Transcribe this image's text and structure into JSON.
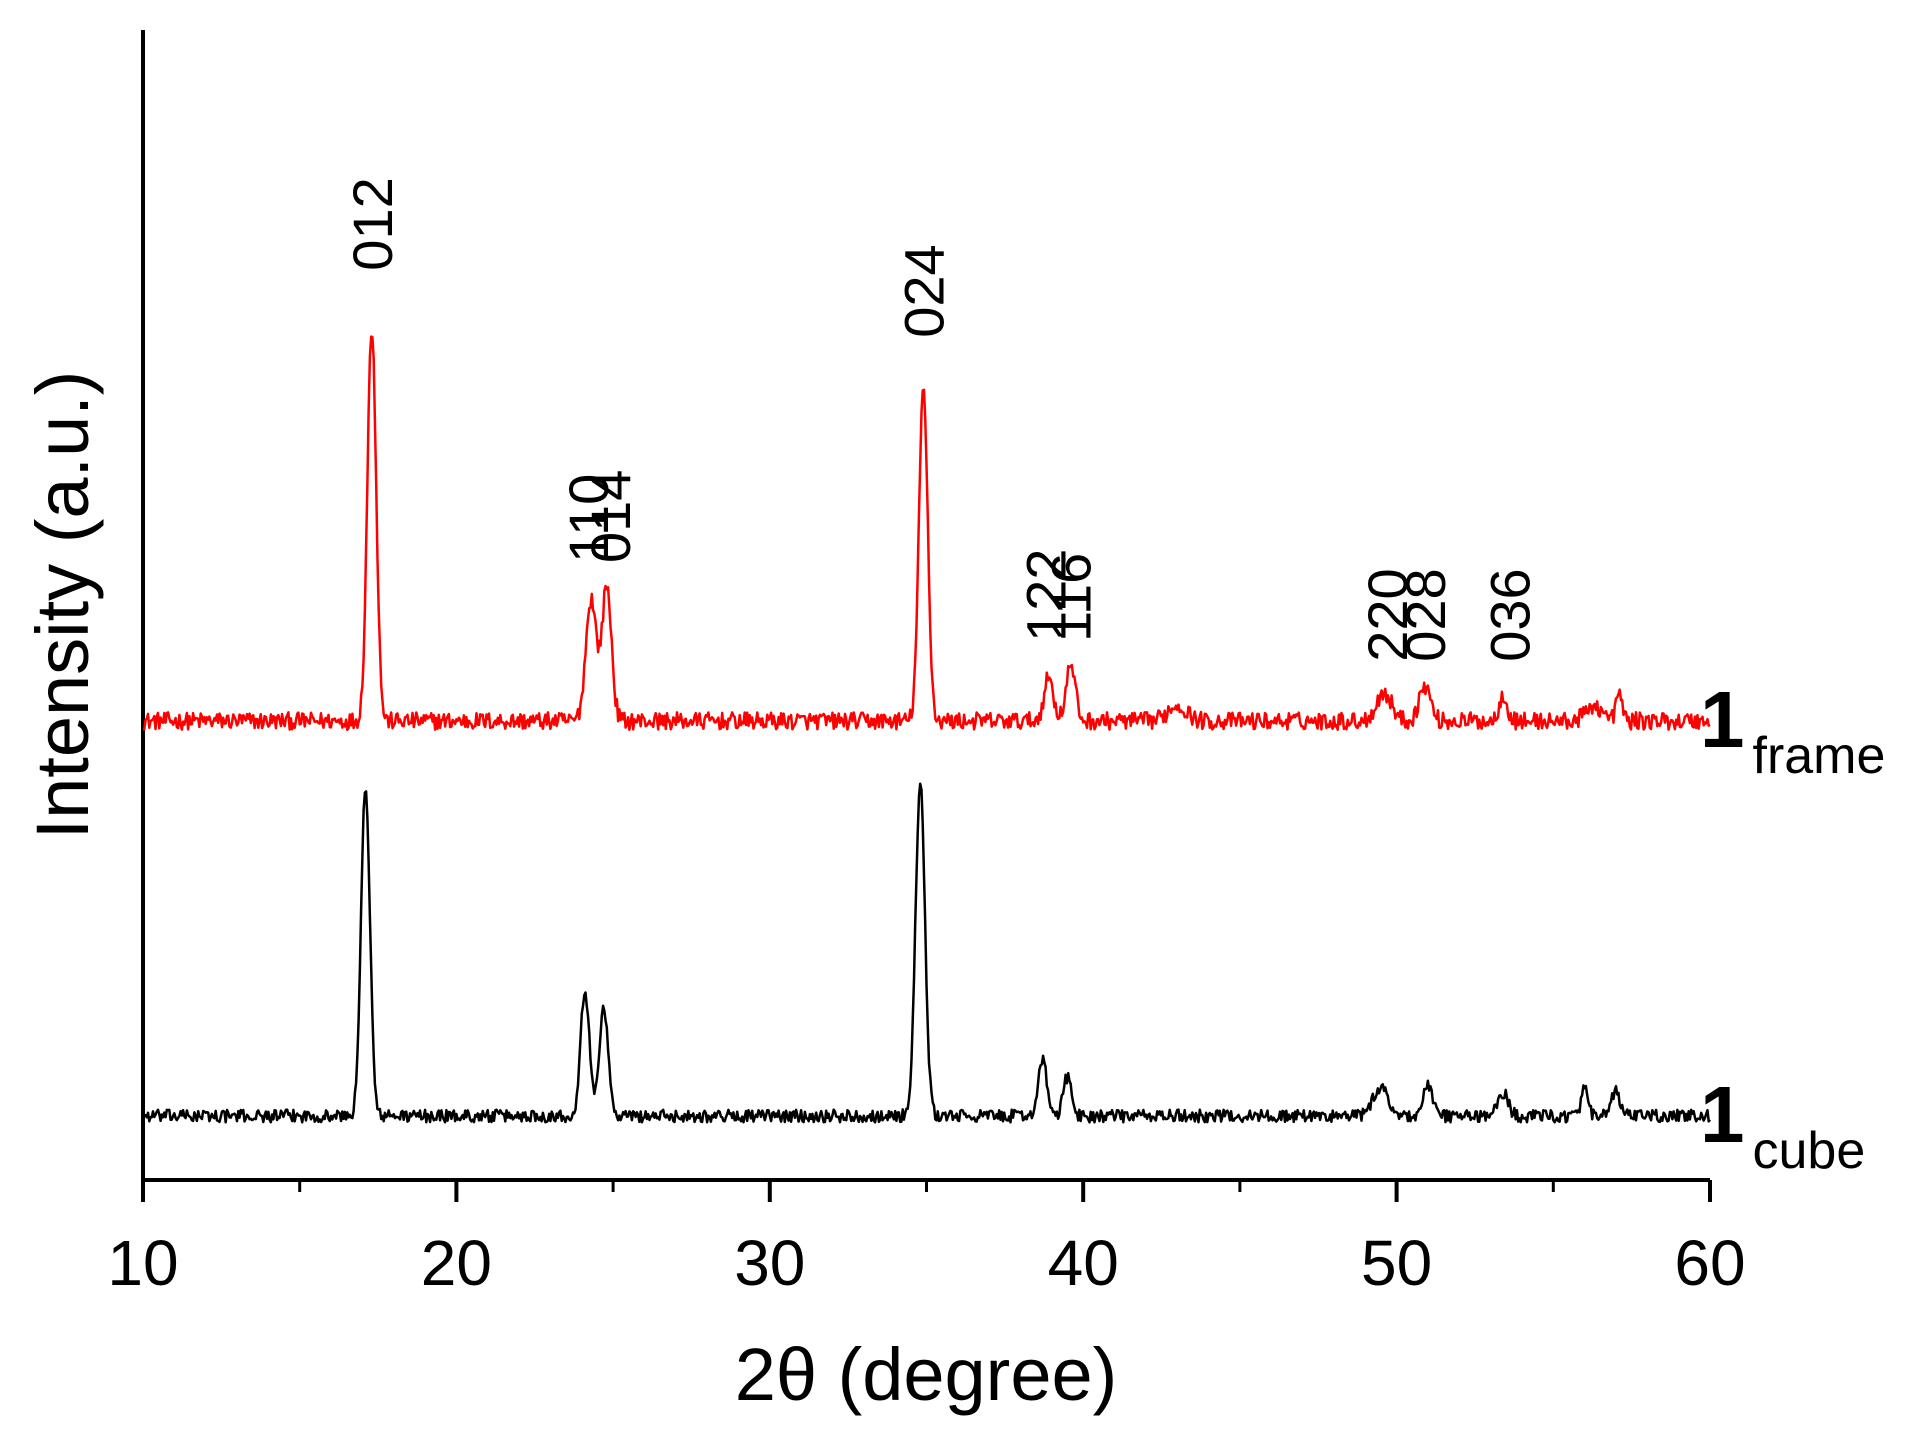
{
  "chart_data": {
    "type": "line",
    "title": "",
    "xlabel": "2θ (degree)",
    "ylabel": "Intensity (a.u.)",
    "xlim": [
      10,
      60
    ],
    "x_major_ticks": [
      10,
      20,
      30,
      40,
      50,
      60
    ],
    "x_minor_ticks": [
      15,
      25,
      35,
      45,
      55
    ],
    "y_ticks_shown": false,
    "grid": false,
    "legend": "none; series labels at right end of each trace",
    "colors": {
      "frame": "#ff0000",
      "cube": "#000000"
    },
    "series": [
      {
        "name": "1 frame",
        "name_number": "1",
        "name_subscript": "frame",
        "color": "#ff0000",
        "baseline": 120,
        "noise": 2.2,
        "peaks": [
          {
            "x": 17.3,
            "height": 100,
            "width": 0.14
          },
          {
            "x": 24.3,
            "height": 31,
            "width": 0.17
          },
          {
            "x": 24.8,
            "height": 34,
            "width": 0.15
          },
          {
            "x": 34.9,
            "height": 84,
            "width": 0.14
          },
          {
            "x": 38.9,
            "height": 11,
            "width": 0.15
          },
          {
            "x": 39.6,
            "height": 14,
            "width": 0.15
          },
          {
            "x": 43.0,
            "height": 4,
            "width": 0.3
          },
          {
            "x": 49.6,
            "height": 7,
            "width": 0.25
          },
          {
            "x": 50.9,
            "height": 9,
            "width": 0.18
          },
          {
            "x": 53.4,
            "height": 7,
            "width": 0.12
          },
          {
            "x": 56.3,
            "height": 4,
            "width": 0.25
          },
          {
            "x": 57.1,
            "height": 7,
            "width": 0.1
          }
        ]
      },
      {
        "name": "1 cube",
        "name_number": "1",
        "name_subscript": "cube",
        "color": "#000000",
        "baseline": 20,
        "noise": 1.6,
        "peaks": [
          {
            "x": 17.1,
            "height": 84,
            "width": 0.14
          },
          {
            "x": 24.1,
            "height": 32,
            "width": 0.14
          },
          {
            "x": 24.7,
            "height": 28,
            "width": 0.14
          },
          {
            "x": 34.8,
            "height": 84,
            "width": 0.15
          },
          {
            "x": 38.7,
            "height": 14,
            "width": 0.14
          },
          {
            "x": 39.5,
            "height": 10,
            "width": 0.13
          },
          {
            "x": 49.5,
            "height": 7,
            "width": 0.25
          },
          {
            "x": 51.0,
            "height": 8,
            "width": 0.14
          },
          {
            "x": 53.4,
            "height": 6,
            "width": 0.16
          },
          {
            "x": 56.0,
            "height": 7,
            "width": 0.1
          },
          {
            "x": 57.0,
            "height": 6,
            "width": 0.14
          }
        ]
      }
    ],
    "annotations": [
      {
        "text": "012",
        "x": 17.3,
        "y": 234
      },
      {
        "text": "110",
        "x": 24.2,
        "y": 160
      },
      {
        "text": "014",
        "x": 24.9,
        "y": 160
      },
      {
        "text": "024",
        "x": 34.9,
        "y": 217
      },
      {
        "text": "122",
        "x": 38.8,
        "y": 140
      },
      {
        "text": "116",
        "x": 39.6,
        "y": 140
      },
      {
        "text": "220",
        "x": 49.7,
        "y": 135
      },
      {
        "text": "028",
        "x": 50.9,
        "y": 135
      },
      {
        "text": "036",
        "x": 53.6,
        "y": 135
      }
    ]
  }
}
